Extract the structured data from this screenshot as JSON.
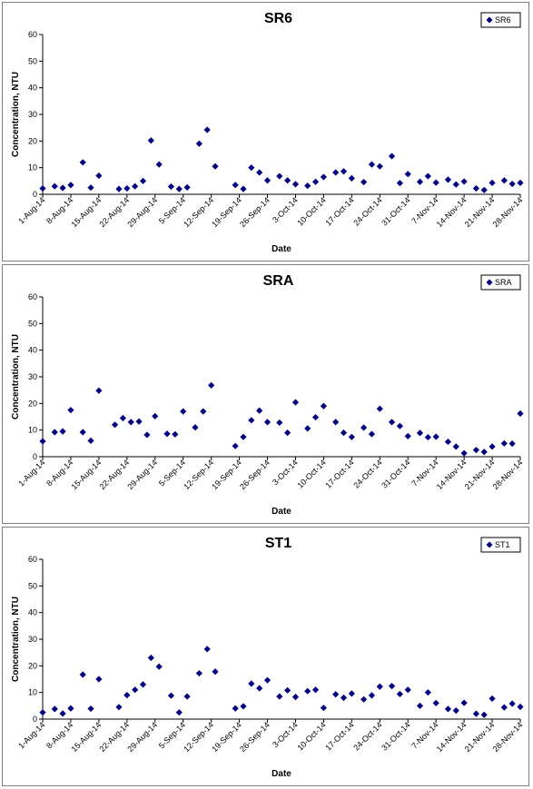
{
  "chart_data": [
    {
      "type": "scatter",
      "title": "SR6",
      "ylabel": "Concentration, NTU",
      "xlabel": "Date",
      "ylim": [
        0,
        60
      ],
      "yticks": [
        0,
        10,
        20,
        30,
        40,
        50,
        60
      ],
      "x_tick_labels": [
        "1-Aug-14",
        "8-Aug-14",
        "15-Aug-14",
        "22-Aug-14",
        "29-Aug-14",
        "5-Sep-14",
        "12-Sep-14",
        "19-Sep-14",
        "26-Sep-14",
        "3-Oct-14",
        "10-Oct-14",
        "17-Oct-14",
        "24-Oct-14",
        "31-Oct-14",
        "7-Nov-14",
        "14-Nov-14",
        "21-Nov-14",
        "28-Nov-14"
      ],
      "legend": "top-right",
      "marker_color": "#000080",
      "series": [
        {
          "name": "SR6",
          "points": [
            [
              "1-Aug-14",
              2.2
            ],
            [
              "4-Aug-14",
              3
            ],
            [
              "6-Aug-14",
              2.4
            ],
            [
              "8-Aug-14",
              3.5
            ],
            [
              "11-Aug-14",
              12
            ],
            [
              "13-Aug-14",
              2.5
            ],
            [
              "15-Aug-14",
              7
            ],
            [
              "20-Aug-14",
              2
            ],
            [
              "22-Aug-14",
              2.2
            ],
            [
              "24-Aug-14",
              3
            ],
            [
              "26-Aug-14",
              5
            ],
            [
              "28-Aug-14",
              20.2
            ],
            [
              "30-Aug-14",
              11.2
            ],
            [
              "2-Sep-14",
              2.9
            ],
            [
              "4-Sep-14",
              2
            ],
            [
              "6-Sep-14",
              2.6
            ],
            [
              "9-Sep-14",
              19
            ],
            [
              "11-Sep-14",
              24.2
            ],
            [
              "13-Sep-14",
              10.5
            ],
            [
              "18-Sep-14",
              3.5
            ],
            [
              "20-Sep-14",
              2
            ],
            [
              "22-Sep-14",
              10
            ],
            [
              "24-Sep-14",
              8.2
            ],
            [
              "26-Sep-14",
              5.2
            ],
            [
              "29-Sep-14",
              6.8
            ],
            [
              "1-Oct-14",
              5.2
            ],
            [
              "3-Oct-14",
              3.8
            ],
            [
              "6-Oct-14",
              3.2
            ],
            [
              "8-Oct-14",
              4.7
            ],
            [
              "10-Oct-14",
              6.5
            ],
            [
              "13-Oct-14",
              8.2
            ],
            [
              "15-Oct-14",
              8.6
            ],
            [
              "17-Oct-14",
              6
            ],
            [
              "20-Oct-14",
              4.6
            ],
            [
              "22-Oct-14",
              11.2
            ],
            [
              "24-Oct-14",
              10.5
            ],
            [
              "27-Oct-14",
              14.3
            ],
            [
              "29-Oct-14",
              4.2
            ],
            [
              "31-Oct-14",
              7.6
            ],
            [
              "3-Nov-14",
              4.7
            ],
            [
              "5-Nov-14",
              6.8
            ],
            [
              "7-Nov-14",
              4.4
            ],
            [
              "10-Nov-14",
              5.5
            ],
            [
              "12-Nov-14",
              3.7
            ],
            [
              "14-Nov-14",
              4.8
            ],
            [
              "17-Nov-14",
              2.2
            ],
            [
              "19-Nov-14",
              1.6
            ],
            [
              "21-Nov-14",
              4.3
            ],
            [
              "24-Nov-14",
              5.2
            ],
            [
              "26-Nov-14",
              3.9
            ],
            [
              "28-Nov-14",
              4.3
            ]
          ]
        }
      ]
    },
    {
      "type": "scatter",
      "title": "SRA",
      "ylabel": "Concentration, NTU",
      "xlabel": "Date",
      "ylim": [
        0,
        60
      ],
      "yticks": [
        0,
        10,
        20,
        30,
        40,
        50,
        60
      ],
      "x_tick_labels": [
        "1-Aug-14",
        "8-Aug-14",
        "15-Aug-14",
        "22-Aug-14",
        "29-Aug-14",
        "5-Sep-14",
        "12-Sep-14",
        "19-Sep-14",
        "26-Sep-14",
        "3-Oct-14",
        "10-Oct-14",
        "17-Oct-14",
        "24-Oct-14",
        "31-Oct-14",
        "7-Nov-14",
        "14-Nov-14",
        "21-Nov-14",
        "28-Nov-14"
      ],
      "legend": "top-right",
      "marker_color": "#000080",
      "series": [
        {
          "name": "SRA",
          "points": [
            [
              "1-Aug-14",
              5.8
            ],
            [
              "4-Aug-14",
              9.2
            ],
            [
              "6-Aug-14",
              9.5
            ],
            [
              "8-Aug-14",
              17.5
            ],
            [
              "11-Aug-14",
              9.2
            ],
            [
              "13-Aug-14",
              6
            ],
            [
              "15-Aug-14",
              24.8
            ],
            [
              "19-Aug-14",
              12
            ],
            [
              "21-Aug-14",
              14.5
            ],
            [
              "23-Aug-14",
              13
            ],
            [
              "25-Aug-14",
              13.2
            ],
            [
              "27-Aug-14",
              8.2
            ],
            [
              "29-Aug-14",
              15.2
            ],
            [
              "1-Sep-14",
              8.6
            ],
            [
              "3-Sep-14",
              8.4
            ],
            [
              "5-Sep-14",
              17
            ],
            [
              "8-Sep-14",
              11
            ],
            [
              "10-Sep-14",
              17
            ],
            [
              "12-Sep-14",
              26.8
            ],
            [
              "18-Sep-14",
              4
            ],
            [
              "20-Sep-14",
              7.4
            ],
            [
              "22-Sep-14",
              13.7
            ],
            [
              "24-Sep-14",
              17.3
            ],
            [
              "26-Sep-14",
              13
            ],
            [
              "29-Sep-14",
              12.8
            ],
            [
              "1-Oct-14",
              9
            ],
            [
              "3-Oct-14",
              20.4
            ],
            [
              "6-Oct-14",
              10.6
            ],
            [
              "8-Oct-14",
              14.8
            ],
            [
              "10-Oct-14",
              19
            ],
            [
              "13-Oct-14",
              13
            ],
            [
              "15-Oct-14",
              9
            ],
            [
              "17-Oct-14",
              7.4
            ],
            [
              "20-Oct-14",
              10.9
            ],
            [
              "22-Oct-14",
              8.5
            ],
            [
              "24-Oct-14",
              18
            ],
            [
              "27-Oct-14",
              13
            ],
            [
              "29-Oct-14",
              11.5
            ],
            [
              "31-Oct-14",
              7.7
            ],
            [
              "3-Nov-14",
              8.9
            ],
            [
              "5-Nov-14",
              7.3
            ],
            [
              "7-Nov-14",
              7.5
            ],
            [
              "10-Nov-14",
              5.6
            ],
            [
              "12-Nov-14",
              3.8
            ],
            [
              "14-Nov-14",
              1.3
            ],
            [
              "17-Nov-14",
              2.5
            ],
            [
              "19-Nov-14",
              1.8
            ],
            [
              "21-Nov-14",
              3.8
            ],
            [
              "24-Nov-14",
              5
            ],
            [
              "26-Nov-14",
              4.9
            ],
            [
              "28-Nov-14",
              16.2
            ]
          ]
        }
      ]
    },
    {
      "type": "scatter",
      "title": "ST1",
      "ylabel": "Concentration, NTU",
      "xlabel": "Date",
      "ylim": [
        0,
        60
      ],
      "yticks": [
        0,
        10,
        20,
        30,
        40,
        50,
        60
      ],
      "x_tick_labels": [
        "1-Aug-14",
        "8-Aug-14",
        "15-Aug-14",
        "22-Aug-14",
        "29-Aug-14",
        "5-Sep-14",
        "12-Sep-14",
        "19-Sep-14",
        "26-Sep-14",
        "3-Oct-14",
        "10-Oct-14",
        "17-Oct-14",
        "24-Oct-14",
        "31-Oct-14",
        "7-Nov-14",
        "14-Nov-14",
        "21-Nov-14",
        "28-Nov-14"
      ],
      "legend": "top-right",
      "marker_color": "#000080",
      "series": [
        {
          "name": "ST1",
          "points": [
            [
              "1-Aug-14",
              2.5
            ],
            [
              "4-Aug-14",
              3.8
            ],
            [
              "6-Aug-14",
              2.1
            ],
            [
              "8-Aug-14",
              4
            ],
            [
              "11-Aug-14",
              16.7
            ],
            [
              "13-Aug-14",
              3.9
            ],
            [
              "15-Aug-14",
              15
            ],
            [
              "20-Aug-14",
              4.5
            ],
            [
              "22-Aug-14",
              9
            ],
            [
              "24-Aug-14",
              11
            ],
            [
              "26-Aug-14",
              13
            ],
            [
              "28-Aug-14",
              23
            ],
            [
              "30-Aug-14",
              19.7
            ],
            [
              "2-Sep-14",
              8.8
            ],
            [
              "4-Sep-14",
              2.5
            ],
            [
              "6-Sep-14",
              8.5
            ],
            [
              "9-Sep-14",
              17.2
            ],
            [
              "11-Sep-14",
              26.3
            ],
            [
              "13-Sep-14",
              17.8
            ],
            [
              "18-Sep-14",
              4
            ],
            [
              "20-Sep-14",
              4.8
            ],
            [
              "22-Sep-14",
              13.3
            ],
            [
              "24-Sep-14",
              11.6
            ],
            [
              "26-Sep-14",
              14.6
            ],
            [
              "29-Sep-14",
              8.5
            ],
            [
              "1-Oct-14",
              10.8
            ],
            [
              "3-Oct-14",
              8.3
            ],
            [
              "6-Oct-14",
              10.5
            ],
            [
              "8-Oct-14",
              11
            ],
            [
              "10-Oct-14",
              4.2
            ],
            [
              "13-Oct-14",
              9.3
            ],
            [
              "15-Oct-14",
              8
            ],
            [
              "17-Oct-14",
              9.6
            ],
            [
              "20-Oct-14",
              7.4
            ],
            [
              "22-Oct-14",
              8.9
            ],
            [
              "24-Oct-14",
              12.2
            ],
            [
              "27-Oct-14",
              12.4
            ],
            [
              "29-Oct-14",
              9.4
            ],
            [
              "31-Oct-14",
              11
            ],
            [
              "3-Nov-14",
              5
            ],
            [
              "5-Nov-14",
              10
            ],
            [
              "7-Nov-14",
              6
            ],
            [
              "10-Nov-14",
              3.8
            ],
            [
              "12-Nov-14",
              3.2
            ],
            [
              "14-Nov-14",
              6.1
            ],
            [
              "17-Nov-14",
              2
            ],
            [
              "19-Nov-14",
              1.6
            ],
            [
              "21-Nov-14",
              7.7
            ],
            [
              "24-Nov-14",
              4.4
            ],
            [
              "26-Nov-14",
              5.8
            ],
            [
              "28-Nov-14",
              4.6
            ]
          ]
        }
      ]
    }
  ]
}
